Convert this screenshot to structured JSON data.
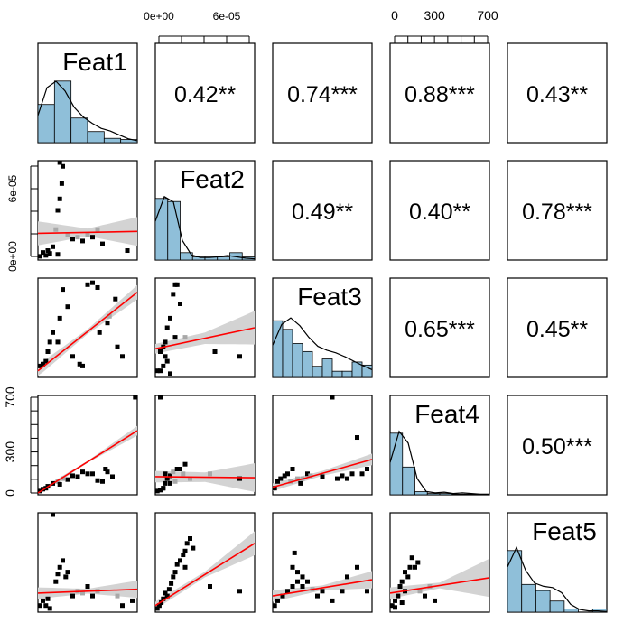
{
  "chart_data": {
    "type": "scatter",
    "title": "",
    "variables": [
      "Feat1",
      "Feat2",
      "Feat3",
      "Feat4",
      "Feat5"
    ],
    "correlations": [
      {
        "row": 1,
        "col": 2,
        "label": "0.42**"
      },
      {
        "row": 1,
        "col": 3,
        "label": "0.74***"
      },
      {
        "row": 1,
        "col": 4,
        "label": "0.88***"
      },
      {
        "row": 1,
        "col": 5,
        "label": "0.43**"
      },
      {
        "row": 2,
        "col": 3,
        "label": "0.49**"
      },
      {
        "row": 2,
        "col": 4,
        "label": "0.40**"
      },
      {
        "row": 2,
        "col": 5,
        "label": "0.78***"
      },
      {
        "row": 3,
        "col": 4,
        "label": "0.65***"
      },
      {
        "row": 3,
        "col": 5,
        "label": "0.45**"
      },
      {
        "row": 4,
        "col": 5,
        "label": "0.50***"
      }
    ],
    "axes": {
      "feat2_ticks": [
        "0e+00",
        "6e-05"
      ],
      "feat4_ticks": [
        "0",
        "300",
        "700"
      ]
    },
    "colors": {
      "histogram_fill": "#8fbfd9",
      "regression_line": "#ff0000",
      "confidence_band": "#d3d3d3",
      "points": "#000000"
    },
    "histograms": [
      {
        "var": "Feat1",
        "heights": [
          0.62,
          1.0,
          0.4,
          0.18,
          0.07,
          0.05
        ],
        "density": [
          0.42,
          0.85,
          0.95,
          0.8,
          0.55,
          0.4,
          0.3,
          0.22,
          0.18,
          0.12,
          0.06,
          0.03
        ]
      },
      {
        "var": "Feat2",
        "heights": [
          1.0,
          0.95,
          0.12,
          0.05,
          0.05,
          0.05,
          0.12,
          0.05
        ],
        "density": [
          0.6,
          0.98,
          0.9,
          0.3,
          0.08,
          0.04,
          0.04,
          0.05,
          0.07,
          0.05,
          0.03,
          0.02
        ]
      },
      {
        "var": "Feat3",
        "heights": [
          0.92,
          0.78,
          0.55,
          0.42,
          0.18,
          0.3,
          0.1,
          0.1,
          0.25,
          0.2
        ],
        "density": [
          0.5,
          0.82,
          0.92,
          0.8,
          0.62,
          0.48,
          0.42,
          0.38,
          0.32,
          0.25,
          0.18,
          0.12
        ]
      },
      {
        "var": "Feat4",
        "heights": [
          1.0,
          0.45,
          0.05,
          0.02,
          0.02,
          0.01,
          0.01,
          0.01
        ],
        "density": [
          0.5,
          0.98,
          0.8,
          0.25,
          0.05,
          0.03,
          0.04,
          0.02,
          0.03,
          0.02,
          0.01,
          0.01
        ]
      },
      {
        "var": "Feat5",
        "heights": [
          1.0,
          0.45,
          0.35,
          0.18,
          0.05,
          0.0,
          0.05
        ],
        "density": [
          0.7,
          1.0,
          0.65,
          0.45,
          0.4,
          0.38,
          0.3,
          0.12,
          0.04,
          0.02,
          0.02,
          0.01
        ]
      }
    ],
    "scatter": [
      {
        "row": 2,
        "col": 1,
        "band_w": [
          0.25,
          0.08,
          0.3
        ],
        "line": [
          0.26,
          0.28
        ],
        "points": [
          [
            0.02,
            0.02
          ],
          [
            0.08,
            0.03
          ],
          [
            0.12,
            0.05
          ],
          [
            0.2,
            0.04
          ],
          [
            0.22,
            1.0
          ],
          [
            0.25,
            0.96
          ],
          [
            0.24,
            0.78
          ],
          [
            0.22,
            0.62
          ],
          [
            0.2,
            0.5
          ],
          [
            0.18,
            0.3
          ],
          [
            0.15,
            0.12
          ],
          [
            0.3,
            0.25
          ],
          [
            0.35,
            0.2
          ],
          [
            0.4,
            0.22
          ],
          [
            0.45,
            0.18
          ],
          [
            0.5,
            0.25
          ],
          [
            0.55,
            0.22
          ],
          [
            0.6,
            0.3
          ],
          [
            0.65,
            0.15
          ],
          [
            0.9,
            0.08
          ],
          [
            0.05,
            0.06
          ],
          [
            0.1,
            0.08
          ]
        ]
      },
      {
        "row": 3,
        "col": 1,
        "band_w": [
          0.12,
          0.05,
          0.15
        ],
        "line": [
          0.05,
          0.87
        ],
        "points": [
          [
            0.02,
            0.1
          ],
          [
            0.08,
            0.15
          ],
          [
            0.12,
            0.35
          ],
          [
            0.15,
            0.45
          ],
          [
            0.2,
            0.35
          ],
          [
            0.22,
            0.6
          ],
          [
            0.25,
            0.9
          ],
          [
            0.3,
            0.72
          ],
          [
            0.35,
            0.2
          ],
          [
            0.42,
            0.12
          ],
          [
            0.45,
            0.1
          ],
          [
            0.5,
            0.95
          ],
          [
            0.55,
            0.97
          ],
          [
            0.6,
            0.92
          ],
          [
            0.62,
            0.45
          ],
          [
            0.7,
            0.55
          ],
          [
            0.72,
            0.62
          ],
          [
            0.78,
            0.8
          ],
          [
            0.8,
            0.3
          ],
          [
            0.85,
            0.2
          ],
          [
            0.1,
            0.25
          ],
          [
            0.05,
            0.12
          ]
        ]
      },
      {
        "row": 3,
        "col": 2,
        "band_w": [
          0.1,
          0.12,
          0.35
        ],
        "line": [
          0.28,
          0.5
        ],
        "points": [
          [
            0.02,
            0.05
          ],
          [
            0.05,
            0.05
          ],
          [
            0.08,
            0.1
          ],
          [
            0.1,
            0.2
          ],
          [
            0.12,
            0.15
          ],
          [
            0.15,
            0.6
          ],
          [
            0.18,
            0.85
          ],
          [
            0.2,
            0.95
          ],
          [
            0.22,
            0.95
          ],
          [
            0.25,
            0.75
          ],
          [
            0.1,
            0.35
          ],
          [
            0.05,
            0.25
          ],
          [
            0.3,
            0.4
          ],
          [
            0.6,
            0.25
          ],
          [
            0.85,
            0.2
          ],
          [
            0.15,
            0.02
          ],
          [
            0.2,
            0.4
          ],
          [
            0.12,
            0.5
          ],
          [
            0.08,
            0.3
          ]
        ]
      },
      {
        "row": 4,
        "col": 1,
        "band_w": [
          0.05,
          0.02,
          0.1
        ],
        "line": [
          0.0,
          0.65
        ],
        "points": [
          [
            0.02,
            0.02
          ],
          [
            0.05,
            0.04
          ],
          [
            0.08,
            0.05
          ],
          [
            0.1,
            0.07
          ],
          [
            0.15,
            0.1
          ],
          [
            0.2,
            0.12
          ],
          [
            0.22,
            0.09
          ],
          [
            0.25,
            0.15
          ],
          [
            0.3,
            0.14
          ],
          [
            0.35,
            0.18
          ],
          [
            0.4,
            0.17
          ],
          [
            0.45,
            0.22
          ],
          [
            0.5,
            0.2
          ],
          [
            0.55,
            0.2
          ],
          [
            0.6,
            0.13
          ],
          [
            0.65,
            0.12
          ],
          [
            0.68,
            0.25
          ],
          [
            0.7,
            0.22
          ],
          [
            0.75,
            0.17
          ],
          [
            0.98,
            1.0
          ]
        ]
      },
      {
        "row": 4,
        "col": 2,
        "band_w": [
          0.12,
          0.1,
          0.3
        ],
        "line": [
          0.17,
          0.16
        ],
        "points": [
          [
            0.02,
            0.02
          ],
          [
            0.05,
            0.03
          ],
          [
            0.08,
            0.05
          ],
          [
            0.1,
            0.1
          ],
          [
            0.12,
            0.15
          ],
          [
            0.15,
            0.18
          ],
          [
            0.18,
            0.22
          ],
          [
            0.2,
            0.12
          ],
          [
            0.22,
            0.25
          ],
          [
            0.25,
            0.25
          ],
          [
            0.28,
            0.2
          ],
          [
            0.3,
            0.3
          ],
          [
            0.05,
            1.0
          ],
          [
            0.08,
            0.05
          ],
          [
            0.1,
            0.2
          ],
          [
            0.15,
            0.1
          ],
          [
            0.35,
            0.15
          ],
          [
            0.55,
            0.2
          ],
          [
            0.85,
            0.15
          ]
        ]
      },
      {
        "row": 4,
        "col": 3,
        "band_w": [
          0.08,
          0.05,
          0.12
        ],
        "line": [
          0.06,
          0.35
        ],
        "points": [
          [
            0.02,
            0.05
          ],
          [
            0.05,
            0.12
          ],
          [
            0.08,
            0.15
          ],
          [
            0.12,
            0.18
          ],
          [
            0.15,
            0.2
          ],
          [
            0.18,
            0.12
          ],
          [
            0.2,
            0.25
          ],
          [
            0.25,
            0.15
          ],
          [
            0.28,
            0.1
          ],
          [
            0.3,
            0.15
          ],
          [
            0.35,
            0.2
          ],
          [
            0.38,
            0.18
          ],
          [
            0.5,
            0.17
          ],
          [
            0.6,
            1.0
          ],
          [
            0.65,
            0.15
          ],
          [
            0.7,
            0.18
          ],
          [
            0.75,
            0.15
          ],
          [
            0.8,
            0.2
          ],
          [
            0.85,
            0.58
          ],
          [
            0.9,
            0.2
          ],
          [
            0.95,
            0.25
          ]
        ]
      },
      {
        "row": 5,
        "col": 1,
        "band_w": [
          0.12,
          0.05,
          0.18
        ],
        "line": [
          0.18,
          0.22
        ],
        "points": [
          [
            0.02,
            0.05
          ],
          [
            0.05,
            0.1
          ],
          [
            0.08,
            0.05
          ],
          [
            0.1,
            0.12
          ],
          [
            0.15,
            1.0
          ],
          [
            0.18,
            0.3
          ],
          [
            0.2,
            0.38
          ],
          [
            0.22,
            0.45
          ],
          [
            0.25,
            0.52
          ],
          [
            0.28,
            0.35
          ],
          [
            0.3,
            0.4
          ],
          [
            0.35,
            0.15
          ],
          [
            0.4,
            0.2
          ],
          [
            0.45,
            0.18
          ],
          [
            0.5,
            0.25
          ],
          [
            0.55,
            0.15
          ],
          [
            0.6,
            0.2
          ],
          [
            0.8,
            0.15
          ],
          [
            0.85,
            0.05
          ],
          [
            0.95,
            0.1
          ],
          [
            0.12,
            0.02
          ]
        ]
      },
      {
        "row": 5,
        "col": 2,
        "band_w": [
          0.08,
          0.06,
          0.25
        ],
        "line": [
          0.05,
          0.7
        ],
        "points": [
          [
            0.02,
            0.02
          ],
          [
            0.04,
            0.05
          ],
          [
            0.06,
            0.08
          ],
          [
            0.08,
            0.12
          ],
          [
            0.1,
            0.18
          ],
          [
            0.12,
            0.15
          ],
          [
            0.14,
            0.22
          ],
          [
            0.16,
            0.28
          ],
          [
            0.18,
            0.35
          ],
          [
            0.2,
            0.4
          ],
          [
            0.22,
            0.48
          ],
          [
            0.25,
            0.52
          ],
          [
            0.28,
            0.58
          ],
          [
            0.3,
            0.62
          ],
          [
            0.32,
            0.7
          ],
          [
            0.35,
            0.75
          ],
          [
            0.38,
            0.65
          ],
          [
            0.3,
            0.45
          ],
          [
            0.85,
            0.2
          ],
          [
            0.55,
            0.25
          ]
        ]
      },
      {
        "row": 5,
        "col": 3,
        "band_w": [
          0.12,
          0.05,
          0.18
        ],
        "line": [
          0.15,
          0.32
        ],
        "points": [
          [
            0.02,
            0.05
          ],
          [
            0.05,
            0.1
          ],
          [
            0.1,
            0.15
          ],
          [
            0.15,
            0.2
          ],
          [
            0.2,
            0.25
          ],
          [
            0.25,
            0.3
          ],
          [
            0.3,
            0.35
          ],
          [
            0.2,
            0.45
          ],
          [
            0.22,
            0.6
          ],
          [
            0.25,
            0.4
          ],
          [
            0.3,
            0.25
          ],
          [
            0.35,
            0.3
          ],
          [
            0.4,
            0.22
          ],
          [
            0.45,
            0.15
          ],
          [
            0.5,
            0.2
          ],
          [
            0.6,
            0.1
          ],
          [
            0.7,
            0.2
          ],
          [
            0.75,
            0.35
          ],
          [
            0.85,
            0.45
          ],
          [
            0.95,
            0.2
          ]
        ]
      },
      {
        "row": 5,
        "col": 4,
        "band_w": [
          0.12,
          0.06,
          0.4
        ],
        "line": [
          0.18,
          0.34
        ],
        "points": [
          [
            0.02,
            0.05
          ],
          [
            0.05,
            0.1
          ],
          [
            0.08,
            0.15
          ],
          [
            0.1,
            0.25
          ],
          [
            0.12,
            0.3
          ],
          [
            0.15,
            0.4
          ],
          [
            0.18,
            0.35
          ],
          [
            0.2,
            0.45
          ],
          [
            0.22,
            0.55
          ],
          [
            0.25,
            0.45
          ],
          [
            0.28,
            0.5
          ],
          [
            0.3,
            0.2
          ],
          [
            0.35,
            0.15
          ],
          [
            0.4,
            0.25
          ],
          [
            0.45,
            0.1
          ],
          [
            0.05,
            0.03
          ],
          [
            0.15,
            0.2
          ],
          [
            0.12,
            0.08
          ]
        ]
      }
    ]
  }
}
